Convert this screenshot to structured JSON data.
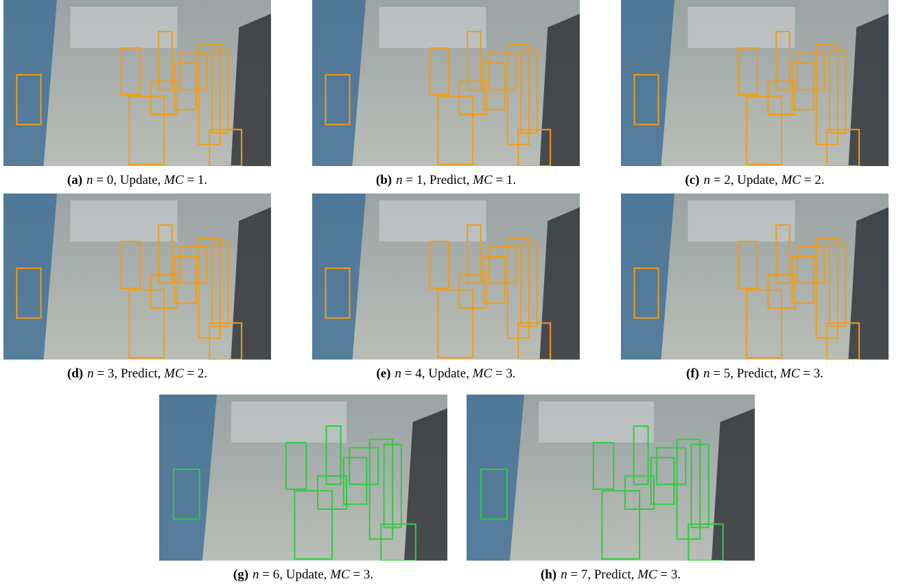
{
  "figure": {
    "panels": [
      {
        "label": "(a)",
        "caption_parts": [
          "n",
          " = 0, Update, ",
          "MC",
          " = 1."
        ],
        "box_color": "#f39c12"
      },
      {
        "label": "(b)",
        "caption_parts": [
          "n",
          " = 1, Predict, ",
          "MC",
          " = 1."
        ],
        "box_color": "#f39c12"
      },
      {
        "label": "(c)",
        "caption_parts": [
          "n",
          " = 2, Update, ",
          "MC",
          " = 2."
        ],
        "box_color": "#f39c12"
      },
      {
        "label": "(d)",
        "caption_parts": [
          "n",
          " = 3, Predict, ",
          "MC",
          " = 2."
        ],
        "box_color": "#f39c12"
      },
      {
        "label": "(e)",
        "caption_parts": [
          "n",
          " = 4, Update, ",
          "MC",
          " = 3."
        ],
        "box_color": "#f39c12"
      },
      {
        "label": "(f)",
        "caption_parts": [
          "n",
          " = 5, Predict, ",
          "MC",
          " = 3."
        ],
        "box_color": "#f39c12"
      },
      {
        "label": "(g)",
        "caption_parts": [
          "n",
          " = 6, Update, ",
          "MC",
          " = 3."
        ],
        "box_color": "#2ecc40"
      },
      {
        "label": "(h)",
        "caption_parts": [
          "n",
          " = 7, Predict, ",
          "MC",
          " = 3."
        ],
        "box_color": "#2ecc40"
      }
    ]
  }
}
